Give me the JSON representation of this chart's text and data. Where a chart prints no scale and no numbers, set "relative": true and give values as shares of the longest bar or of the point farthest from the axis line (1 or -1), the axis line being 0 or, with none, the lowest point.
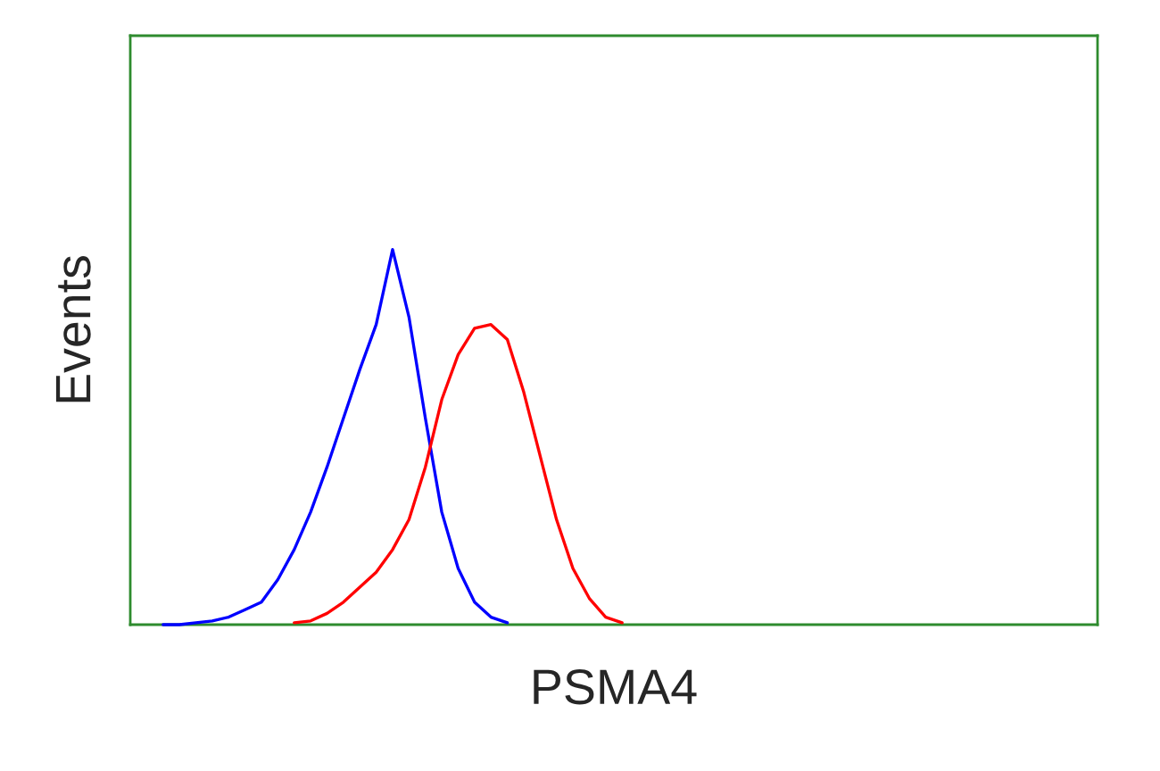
{
  "chart_data": {
    "type": "line",
    "xlabel": "PSMA4",
    "ylabel": "Events",
    "relative": true,
    "categories": [
      null,
      null,
      null,
      null,
      null,
      null,
      null,
      null,
      null,
      null,
      null,
      null,
      null,
      null,
      null,
      null,
      null,
      null,
      null,
      null,
      null,
      null,
      null,
      null,
      null,
      null,
      null,
      null,
      null,
      null,
      null,
      null,
      null,
      null,
      null,
      null,
      null,
      null,
      null,
      null,
      null,
      null,
      null,
      null,
      null,
      null,
      null,
      null,
      null,
      null,
      null,
      null,
      null,
      null,
      null,
      null,
      null,
      null,
      null,
      null
    ],
    "series": [
      {
        "color": "#0000ff",
        "values": [
          null,
          null,
          0,
          0,
          0.005,
          0.01,
          0.02,
          0.04,
          0.06,
          0.12,
          0.2,
          0.3,
          0.42,
          0.55,
          0.68,
          0.8,
          1.0,
          0.82,
          0.55,
          0.3,
          0.15,
          0.06,
          0.02,
          0.005,
          null,
          null,
          null,
          null,
          null,
          null,
          null,
          null,
          null,
          null,
          null,
          null,
          null,
          null,
          null,
          null,
          null,
          null,
          null,
          null,
          null,
          null,
          null,
          null,
          null,
          null,
          null,
          null,
          null,
          null,
          null,
          null,
          null,
          null,
          null,
          null
        ]
      },
      {
        "color": "#ff0000",
        "values": [
          null,
          null,
          null,
          null,
          null,
          null,
          null,
          null,
          null,
          null,
          0.005,
          0.01,
          0.03,
          0.06,
          0.1,
          0.14,
          0.2,
          0.28,
          0.42,
          0.6,
          0.72,
          0.79,
          0.8,
          0.76,
          0.62,
          0.45,
          0.28,
          0.15,
          0.07,
          0.02,
          0.005,
          null,
          null,
          null,
          null,
          null,
          null,
          null,
          null,
          null,
          null,
          null,
          null,
          null,
          null,
          null,
          null,
          null,
          null,
          null,
          null,
          null,
          null,
          null,
          null,
          null,
          null,
          null,
          null,
          null
        ]
      }
    ]
  }
}
